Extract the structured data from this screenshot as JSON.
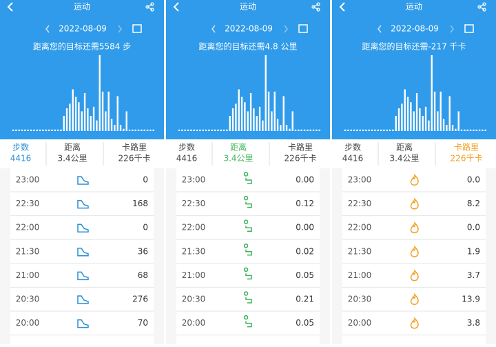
{
  "panels": [
    {
      "title": "运动",
      "date": "2022-08-09",
      "goal": "距离您的目标还需5584 步",
      "accent": "#2a8fd6",
      "active_tab": 0,
      "tabs": [
        {
          "label": "步数",
          "value": "4416"
        },
        {
          "label": "距离",
          "value": "3.4公里"
        },
        {
          "label": "卡路里",
          "value": "226千卡"
        }
      ],
      "bars": [
        2,
        2,
        2,
        2,
        2,
        2,
        2,
        2,
        2,
        2,
        2,
        2,
        2,
        2,
        2,
        2,
        2,
        20,
        30,
        36,
        55,
        45,
        38,
        26,
        50,
        30,
        20,
        32,
        14,
        100,
        52,
        26,
        52,
        16,
        8,
        46,
        8,
        3,
        26,
        2,
        2,
        2,
        2,
        2,
        2,
        2,
        2,
        2
      ],
      "rows": [
        [
          "23:00",
          "0"
        ],
        [
          "22:30",
          "168"
        ],
        [
          "22:00",
          "0"
        ],
        [
          "21:30",
          "36"
        ],
        [
          "21:00",
          "68"
        ],
        [
          "20:30",
          "276"
        ],
        [
          "20:00",
          "70"
        ]
      ]
    },
    {
      "title": "运动",
      "date": "2022-08-09",
      "goal": "距离您的目标还需4.8 公里",
      "accent": "#3db35a",
      "active_tab": 1,
      "tabs": [
        {
          "label": "步数",
          "value": "4416"
        },
        {
          "label": "距离",
          "value": "3.4公里"
        },
        {
          "label": "卡路里",
          "value": "226千卡"
        }
      ],
      "bars": [
        2,
        2,
        2,
        2,
        2,
        2,
        2,
        2,
        2,
        2,
        2,
        2,
        2,
        2,
        2,
        2,
        2,
        20,
        30,
        36,
        55,
        45,
        38,
        26,
        50,
        30,
        20,
        32,
        14,
        100,
        52,
        26,
        52,
        16,
        8,
        46,
        8,
        3,
        26,
        2,
        2,
        2,
        2,
        2,
        2,
        2,
        2,
        2
      ],
      "rows": [
        [
          "23:00",
          "0.00"
        ],
        [
          "22:30",
          "0.12"
        ],
        [
          "22:00",
          "0.00"
        ],
        [
          "21:30",
          "0.02"
        ],
        [
          "21:00",
          "0.05"
        ],
        [
          "20:30",
          "0.21"
        ],
        [
          "20:00",
          "0.05"
        ]
      ]
    },
    {
      "title": "运动",
      "date": "2022-08-09",
      "goal": "距离您的目标还需-217 千卡",
      "accent": "#f0a020",
      "active_tab": 2,
      "tabs": [
        {
          "label": "步数",
          "value": "4416"
        },
        {
          "label": "距离",
          "value": "3.4公里"
        },
        {
          "label": "卡路里",
          "value": "226千卡"
        }
      ],
      "bars": [
        2,
        2,
        2,
        2,
        2,
        2,
        2,
        2,
        2,
        2,
        2,
        2,
        2,
        2,
        2,
        2,
        2,
        20,
        30,
        36,
        55,
        45,
        38,
        26,
        50,
        30,
        20,
        32,
        14,
        100,
        52,
        26,
        52,
        16,
        8,
        46,
        8,
        3,
        26,
        2,
        2,
        2,
        2,
        2,
        2,
        2,
        2,
        2
      ],
      "rows": [
        [
          "23:00",
          "0.0"
        ],
        [
          "22:30",
          "8.2"
        ],
        [
          "22:00",
          "0.0"
        ],
        [
          "21:30",
          "1.9"
        ],
        [
          "21:00",
          "3.7"
        ],
        [
          "20:30",
          "13.9"
        ],
        [
          "20:00",
          "3.8"
        ]
      ]
    }
  ]
}
